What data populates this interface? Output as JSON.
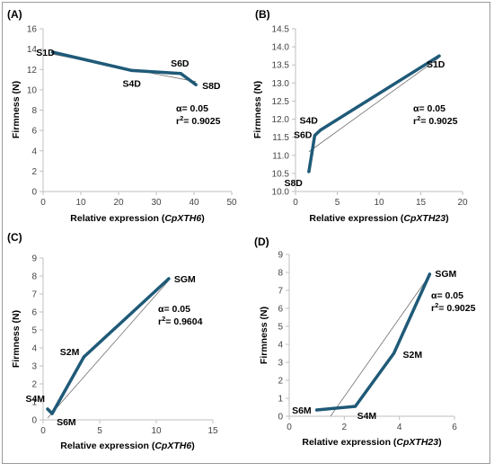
{
  "chart_data": [
    {
      "type": "line",
      "panel": "(A)",
      "xlabel": "Relative expression (CpXTH6)",
      "xlabel_plain": "Relative expression (",
      "xlabel_gene": "CpXTH6",
      "ylabel": "Firmness (N)",
      "xlim": [
        0,
        50
      ],
      "ylim": [
        0,
        16
      ],
      "xticks": [
        0,
        10,
        20,
        30,
        40,
        50
      ],
      "yticks": [
        0,
        2,
        4,
        6,
        8,
        10,
        12,
        14,
        16
      ],
      "series": [
        {
          "x": [
            2.5,
            23.5,
            36.5,
            40.5
          ],
          "y": [
            13.7,
            11.9,
            11.6,
            10.5
          ],
          "color": "#1f5a78"
        }
      ],
      "point_labels": [
        "S1D",
        "S4D",
        "S6D",
        "S8D"
      ],
      "trendline": {
        "x": [
          2.5,
          40.5
        ],
        "y": [
          13.5,
          10.8
        ]
      },
      "stats": {
        "alpha": "α= 0.05",
        "r2_prefix": "r",
        "r2_sup": "2",
        "r2_value": "= 0.9025"
      }
    },
    {
      "type": "line",
      "panel": "(B)",
      "xlabel": "Relative expression (CpXTH23)",
      "xlabel_plain": "Relative expression (",
      "xlabel_gene": "CpXTH23",
      "ylabel": "Firmness (N)",
      "xlim": [
        0,
        20
      ],
      "ylim": [
        10,
        14.5
      ],
      "xticks": [
        0,
        5,
        10,
        15,
        20
      ],
      "yticks": [
        10,
        10.5,
        11,
        11.5,
        12,
        12.5,
        13,
        13.5,
        14,
        14.5
      ],
      "series": [
        {
          "x": [
            1.6,
            2.3,
            3.0,
            17.2
          ],
          "y": [
            10.55,
            11.55,
            11.7,
            13.75
          ],
          "color": "#1f5a78"
        }
      ],
      "point_labels": [
        "S8D",
        "S6D",
        "S4D",
        "S1D"
      ],
      "trendline": {
        "x": [
          1.6,
          17.2
        ],
        "y": [
          11.1,
          13.7
        ]
      },
      "stats": {
        "alpha": "α= 0.05",
        "r2_prefix": "r",
        "r2_sup": "2",
        "r2_value": "= 0.9025"
      }
    },
    {
      "type": "line",
      "panel": "(C)",
      "xlabel": "Relative expression (CpXTH6)",
      "xlabel_plain": "Relative expression (",
      "xlabel_gene": "CpXTH6",
      "ylabel": "Firmness (N)",
      "xlim": [
        0,
        15
      ],
      "ylim": [
        0,
        9
      ],
      "xticks": [
        0,
        5,
        10,
        15
      ],
      "yticks": [
        0,
        1,
        2,
        3,
        4,
        5,
        6,
        7,
        8,
        9
      ],
      "series": [
        {
          "x": [
            0.4,
            0.8,
            3.6,
            11.1
          ],
          "y": [
            0.6,
            0.35,
            3.5,
            7.85
          ],
          "color": "#1f5a78"
        }
      ],
      "point_labels": [
        "S4M",
        "S6M",
        "S2M",
        "SGM"
      ],
      "trendline": {
        "x": [
          0.4,
          11.1
        ],
        "y": [
          0.1,
          7.75
        ]
      },
      "stats": {
        "alpha": "α= 0.05",
        "r2_prefix": "r",
        "r2_sup": "2",
        "r2_value": "= 0.9604"
      }
    },
    {
      "type": "line",
      "panel": "(D)",
      "xlabel": "Relative expression (CpXTH23)",
      "xlabel_plain": "Relative expression (",
      "xlabel_gene": "CpXTH23",
      "ylabel": "Firmness (N)",
      "xlim": [
        0,
        6
      ],
      "ylim": [
        0,
        9
      ],
      "xticks": [
        0,
        2,
        4,
        6
      ],
      "yticks": [
        0,
        1,
        2,
        3,
        4,
        5,
        6,
        7,
        8,
        9
      ],
      "series": [
        {
          "x": [
            1.0,
            2.4,
            3.8,
            5.1
          ],
          "y": [
            0.35,
            0.55,
            3.5,
            7.9
          ],
          "color": "#1f5a78"
        }
      ],
      "point_labels": [
        "S6M",
        "S4M",
        "S2M",
        "SGM"
      ],
      "trendline": {
        "x": [
          1.5,
          5.1
        ],
        "y": [
          0.0,
          7.85
        ]
      },
      "stats": {
        "alpha": "α= 0.05",
        "r2_prefix": "r",
        "r2_sup": "2",
        "r2_value": "= 0.9025"
      }
    }
  ]
}
